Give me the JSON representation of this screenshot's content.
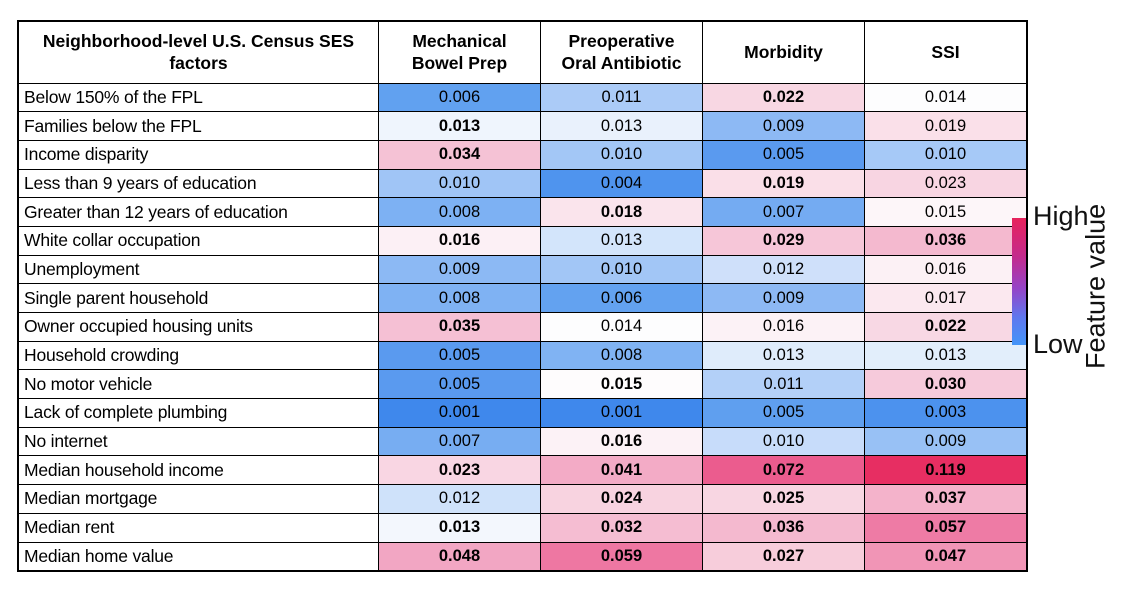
{
  "chart_data": {
    "type": "heatmap",
    "row_header": "Neighborhood-level U.S. Census SES factors",
    "columns": [
      "Mechanical Bowel Prep",
      "Preoperative Oral Antibiotic",
      "Morbidity",
      "SSI"
    ],
    "rows": [
      "Below 150% of the FPL",
      "Families below the FPL",
      "Income disparity",
      "Less than 9 years of education",
      "Greater than 12 years of education",
      "White collar occupation",
      "Unemployment",
      "Single parent household",
      "Owner occupied housing units",
      "Household crowding",
      "No motor vehicle",
      "Lack of complete plumbing",
      "No internet",
      "Median household income",
      "Median mortgage",
      "Median rent",
      "Median home value"
    ],
    "values": [
      [
        0.006,
        0.011,
        0.022,
        0.014
      ],
      [
        0.013,
        0.013,
        0.009,
        0.019
      ],
      [
        0.034,
        0.01,
        0.005,
        0.01
      ],
      [
        0.01,
        0.004,
        0.019,
        0.023
      ],
      [
        0.008,
        0.018,
        0.007,
        0.015
      ],
      [
        0.016,
        0.013,
        0.029,
        0.036
      ],
      [
        0.009,
        0.01,
        0.012,
        0.016
      ],
      [
        0.008,
        0.006,
        0.009,
        0.017
      ],
      [
        0.035,
        0.014,
        0.016,
        0.022
      ],
      [
        0.005,
        0.008,
        0.013,
        0.013
      ],
      [
        0.005,
        0.015,
        0.011,
        0.03
      ],
      [
        0.001,
        0.001,
        0.005,
        0.003
      ],
      [
        0.007,
        0.016,
        0.01,
        0.009
      ],
      [
        0.023,
        0.041,
        0.072,
        0.119
      ],
      [
        0.012,
        0.024,
        0.025,
        0.037
      ],
      [
        0.013,
        0.032,
        0.036,
        0.057
      ],
      [
        0.048,
        0.059,
        0.027,
        0.047
      ]
    ],
    "bold": [
      [
        false,
        false,
        true,
        false
      ],
      [
        true,
        false,
        false,
        false
      ],
      [
        true,
        false,
        false,
        false
      ],
      [
        false,
        false,
        true,
        false
      ],
      [
        false,
        true,
        false,
        false
      ],
      [
        true,
        false,
        true,
        true
      ],
      [
        false,
        false,
        false,
        false
      ],
      [
        false,
        false,
        false,
        false
      ],
      [
        true,
        false,
        false,
        true
      ],
      [
        false,
        false,
        false,
        false
      ],
      [
        false,
        true,
        false,
        true
      ],
      [
        false,
        false,
        false,
        false
      ],
      [
        false,
        true,
        false,
        false
      ],
      [
        true,
        true,
        true,
        true
      ],
      [
        false,
        true,
        true,
        true
      ],
      [
        true,
        true,
        true,
        true
      ],
      [
        true,
        true,
        true,
        true
      ]
    ],
    "cell_colors": [
      [
        "#61a1f0",
        "#abcbf7",
        "#f8d7e3",
        "#fdfdfe"
      ],
      [
        "#eff5fd",
        "#e9f1fc",
        "#8db9f4",
        "#fae0e9"
      ],
      [
        "#f5c2d5",
        "#a3c7f6",
        "#5a9aef",
        "#a6c9f7"
      ],
      [
        "#a0c5f6",
        "#4f94ee",
        "#fadfe8",
        "#f8d5e2"
      ],
      [
        "#7db1f3",
        "#fae4ec",
        "#74abf2",
        "#fdf6f9"
      ],
      [
        "#fcf0f5",
        "#d3e5fb",
        "#f6c6d8",
        "#f4b9cf"
      ],
      [
        "#8cb9f4",
        "#a2c6f6",
        "#cfe0fa",
        "#fcf1f5"
      ],
      [
        "#7fb2f3",
        "#63a2f0",
        "#8db9f4",
        "#fbe8ef"
      ],
      [
        "#f5c0d4",
        "#fdfdfe",
        "#fcf2f6",
        "#f8d8e4"
      ],
      [
        "#5a9aef",
        "#80b3f3",
        "#dfecfb",
        "#e2eefb"
      ],
      [
        "#5a9aef",
        "#fefcfd",
        "#b3d0f8",
        "#f6cadb"
      ],
      [
        "#3f88ec",
        "#3f88ec",
        "#5f9fef",
        "#4c92ee"
      ],
      [
        "#77adf2",
        "#fcf2f6",
        "#c7dcfa",
        "#98c1f5"
      ],
      [
        "#f9d6e3",
        "#f3abc6",
        "#eb5c8e",
        "#e72e62"
      ],
      [
        "#cfe2fa",
        "#f8d3e0",
        "#f8d6e2",
        "#f4b3cb"
      ],
      [
        "#f3f7fd",
        "#f5bdd2",
        "#f4b9cf",
        "#ee7ba5"
      ],
      [
        "#f2a6c3",
        "#ee77a2",
        "#f7cddb",
        "#f195b6"
      ]
    ],
    "value_decimals": 3,
    "legend": {
      "high_label": "High",
      "low_label": "Low",
      "title": "Feature value",
      "gradient_colors": [
        "#e7235c",
        "#c42a8c",
        "#9643c6",
        "#5f77ee",
        "#4495f8"
      ],
      "gradient_stops": [
        0,
        30,
        55,
        78,
        100
      ]
    },
    "colors": {
      "low": "#3f88ec",
      "mid": "#ffffff",
      "high": "#e72e62",
      "text": "#000000",
      "border": "#000000"
    }
  }
}
